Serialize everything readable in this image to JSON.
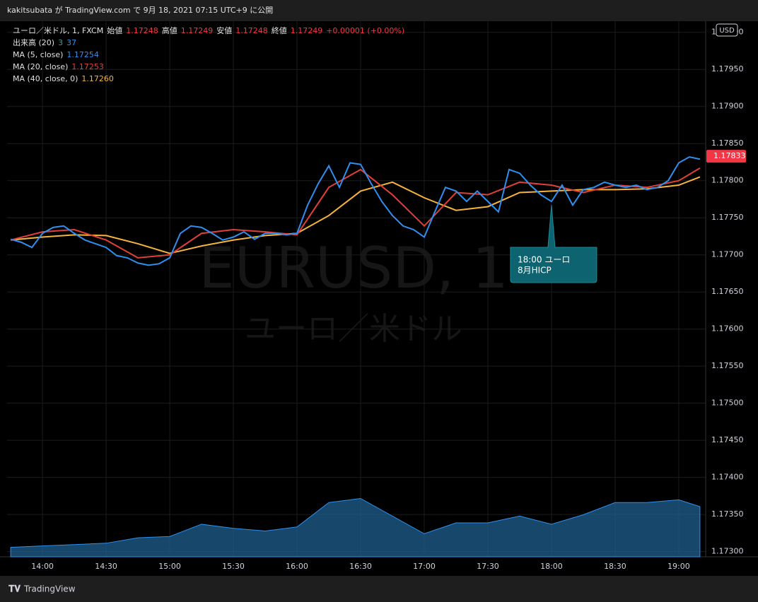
{
  "header": {
    "published": "kakitsubata が TradingView.com で 9月 18, 2021 07:15 UTC+9 に公開",
    "footer_logo": "TradingView"
  },
  "chart_data": {
    "type": "line",
    "symbol": "ユーロ／米ドル, 1, FXCM",
    "ohlc": [
      {
        "label": "始値",
        "value": "1.17248"
      },
      {
        "label": "高値",
        "value": "1.17249"
      },
      {
        "label": "安値",
        "value": "1.17248"
      },
      {
        "label": "終値",
        "value": "1.17249"
      }
    ],
    "change": "+0.00001 (+0.00%)",
    "watermark": "EURUSD, 1",
    "watermark_sub": "ユーロ／米ドル",
    "currency": "USD",
    "last_price": 1.17833,
    "xlim": [
      823.3,
      1152.7
    ],
    "xticks": [
      {
        "value": 840,
        "label": "14:00"
      },
      {
        "value": 870,
        "label": "14:30"
      },
      {
        "value": 900,
        "label": "15:00"
      },
      {
        "value": 930,
        "label": "15:30"
      },
      {
        "value": 960,
        "label": "16:00"
      },
      {
        "value": 990,
        "label": "16:30"
      },
      {
        "value": 1020,
        "label": "17:00"
      },
      {
        "value": 1050,
        "label": "17:30"
      },
      {
        "value": 1080,
        "label": "18:00"
      },
      {
        "value": 1110,
        "label": "18:30"
      },
      {
        "value": 1140,
        "label": "19:00"
      }
    ],
    "ylim": [
      1.17293,
      1.18015
    ],
    "yticks": [
      {
        "value": 1.173,
        "label": "1.17300"
      },
      {
        "value": 1.1735,
        "label": "1.17350"
      },
      {
        "value": 1.174,
        "label": "1.17400"
      },
      {
        "value": 1.1745,
        "label": "1.17450"
      },
      {
        "value": 1.175,
        "label": "1.17500"
      },
      {
        "value": 1.1755,
        "label": "1.17550"
      },
      {
        "value": 1.176,
        "label": "1.17600"
      },
      {
        "value": 1.1765,
        "label": "1.17650"
      },
      {
        "value": 1.177,
        "label": "1.17700"
      },
      {
        "value": 1.1775,
        "label": "1.17750"
      },
      {
        "value": 1.178,
        "label": "1.17800"
      },
      {
        "value": 1.1785,
        "label": "1.17850"
      },
      {
        "value": 1.179,
        "label": "1.17900"
      },
      {
        "value": 1.1795,
        "label": "1.17950"
      },
      {
        "value": 1.18,
        "label": "1.18000"
      }
    ],
    "grid": true,
    "series": [
      {
        "name": "MA (5, close)",
        "legend_value": 1.17254,
        "color": "#2f8ff0",
        "x": [
          825,
          830,
          835,
          840,
          845,
          850,
          855,
          860,
          865,
          870,
          875,
          880,
          885,
          890,
          895,
          900,
          905,
          910,
          915,
          920,
          925,
          930,
          935,
          940,
          945,
          950,
          955,
          960,
          965,
          970,
          975,
          980,
          985,
          990,
          995,
          1000,
          1005,
          1010,
          1015,
          1020,
          1025,
          1030,
          1035,
          1040,
          1045,
          1050,
          1055,
          1060,
          1065,
          1070,
          1075,
          1080,
          1085,
          1090,
          1095,
          1100,
          1105,
          1110,
          1115,
          1120,
          1125,
          1130,
          1135,
          1140,
          1145,
          1150
        ],
        "values": [
          1.17721,
          1.17717,
          1.1771,
          1.17729,
          1.17737,
          1.17739,
          1.17729,
          1.1772,
          1.17715,
          1.1771,
          1.17699,
          1.17696,
          1.17689,
          1.17686,
          1.17688,
          1.17696,
          1.17729,
          1.17739,
          1.17737,
          1.17729,
          1.1772,
          1.17724,
          1.17731,
          1.17721,
          1.17729,
          1.17729,
          1.17727,
          1.17729,
          1.17767,
          1.17796,
          1.1782,
          1.17791,
          1.17824,
          1.17822,
          1.17796,
          1.17772,
          1.17753,
          1.17739,
          1.17734,
          1.17724,
          1.17758,
          1.17791,
          1.17786,
          1.17772,
          1.17786,
          1.17772,
          1.17758,
          1.17815,
          1.1781,
          1.17794,
          1.17781,
          1.17772,
          1.17794,
          1.17767,
          1.17788,
          1.17791,
          1.17798,
          1.17794,
          1.17791,
          1.17794,
          1.17788,
          1.17791,
          1.178,
          1.17824,
          1.17832,
          1.17829
        ]
      },
      {
        "name": "MA (20, close)",
        "legend_value": 1.17253,
        "color": "#e0403a",
        "x": [
          825,
          840,
          855,
          870,
          885,
          900,
          915,
          930,
          945,
          960,
          975,
          990,
          1005,
          1020,
          1035,
          1050,
          1065,
          1080,
          1095,
          1110,
          1125,
          1140,
          1150
        ],
        "values": [
          1.1772,
          1.17731,
          1.17734,
          1.1772,
          1.17696,
          1.177,
          1.17729,
          1.17734,
          1.17731,
          1.17727,
          1.17791,
          1.17815,
          1.17781,
          1.17739,
          1.17784,
          1.17781,
          1.17798,
          1.17794,
          1.17784,
          1.17794,
          1.17791,
          1.178,
          1.17817
        ]
      },
      {
        "name": "MA (40, close, 0)",
        "legend_value": {
          "value": 1.1726,
          "label": "1.17260"
        },
        "color": "#f5b43c",
        "x": [
          825,
          840,
          855,
          870,
          885,
          900,
          915,
          930,
          945,
          960,
          975,
          990,
          1005,
          1020,
          1035,
          1050,
          1065,
          1080,
          1095,
          1110,
          1125,
          1140,
          1150
        ],
        "values": [
          1.1772,
          1.17724,
          1.17727,
          1.17726,
          1.17715,
          1.17702,
          1.17712,
          1.1772,
          1.17726,
          1.17729,
          1.17753,
          1.17786,
          1.17798,
          1.17777,
          1.1776,
          1.17765,
          1.17784,
          1.17786,
          1.17788,
          1.17788,
          1.17789,
          1.17794,
          1.17805
        ]
      }
    ],
    "volume": {
      "name": "出来高 (20)",
      "last": 3,
      "ma_last": 37,
      "color": "#1f5f8f",
      "last_color": "#26a69a",
      "ma_color": "#2f8ff0",
      "vlim": [
        0,
        395
      ],
      "x": [
        825,
        840,
        855,
        870,
        885,
        900,
        915,
        930,
        945,
        960,
        975,
        990,
        1005,
        1020,
        1035,
        1050,
        1065,
        1080,
        1095,
        1110,
        1125,
        1140,
        1150
      ],
      "values": [
        7,
        8,
        9,
        10,
        14,
        15,
        24,
        21,
        19,
        22,
        40,
        43,
        30,
        17,
        25,
        25,
        30,
        24,
        31,
        40,
        40,
        42,
        37
      ]
    },
    "annotation": {
      "x": 1080,
      "lines": [
        "18:00 ユーロ",
        "8月HICP"
      ]
    }
  }
}
